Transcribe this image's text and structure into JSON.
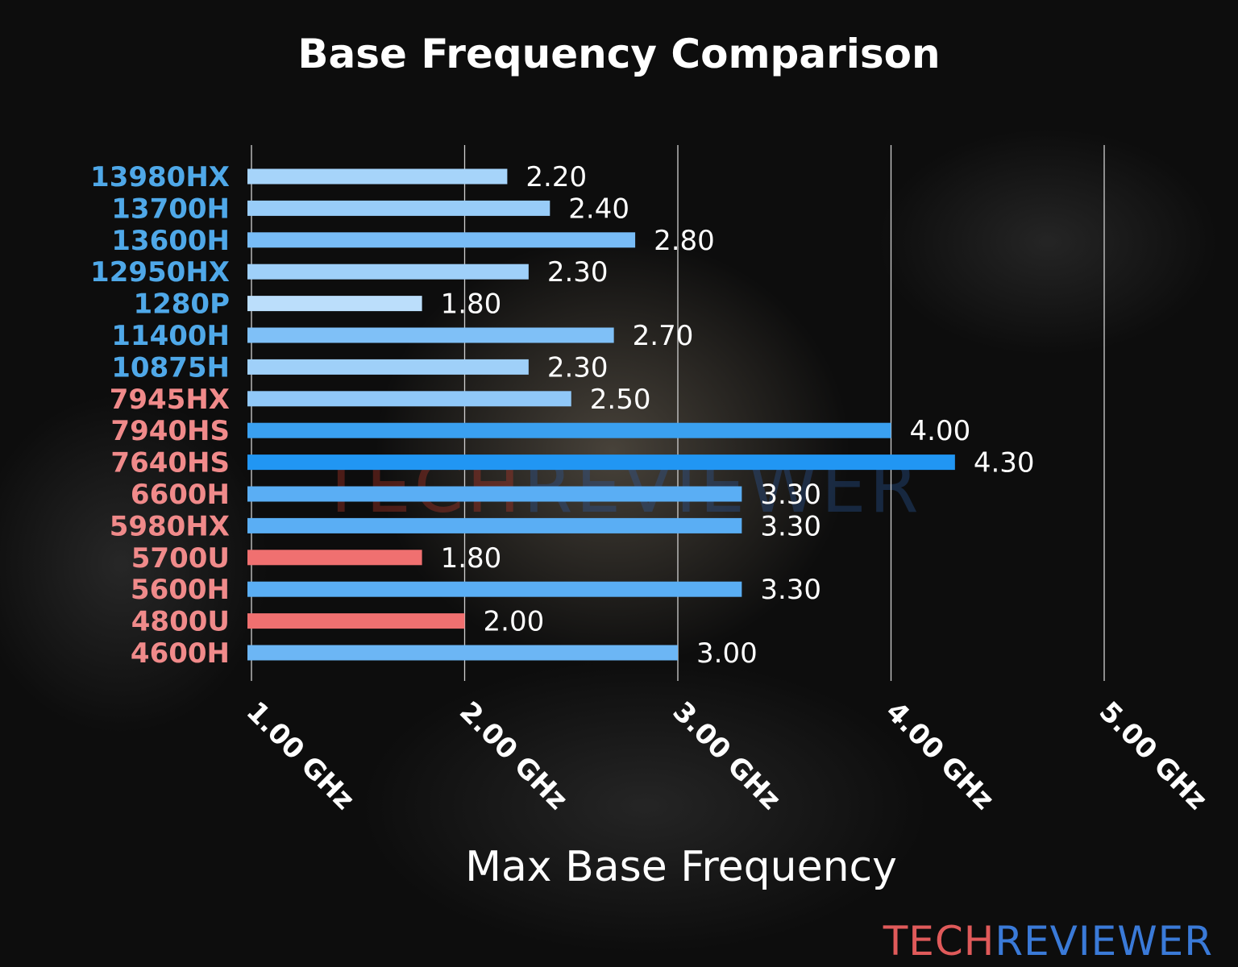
{
  "chart_data": {
    "type": "bar",
    "orientation": "horizontal",
    "title": "Base Frequency Comparison",
    "xlabel": "Max Base Frequency",
    "ylabel": "",
    "xlim": [
      1.0,
      5.0
    ],
    "xticks": [
      1,
      2,
      3,
      4,
      5
    ],
    "xtick_labels": [
      "1.00 GHz",
      "2.00 GHz",
      "3.00 GHz",
      "4.00 GHz",
      "5.00 GHz"
    ],
    "grid": "vertical",
    "categories": [
      "13980HX",
      "13700H",
      "13600H",
      "12950HX",
      "1280P",
      "11400H",
      "10875H",
      "7945HX",
      "7940HS",
      "7640HS",
      "6600H",
      "5980HX",
      "5700U",
      "5600H",
      "4800U",
      "4600H"
    ],
    "values": [
      2.2,
      2.4,
      2.8,
      2.3,
      1.8,
      2.7,
      2.3,
      2.5,
      4.0,
      4.3,
      3.3,
      3.3,
      1.8,
      3.3,
      2.0,
      3.0
    ],
    "value_labels": [
      "2.20",
      "2.40",
      "2.80",
      "2.30",
      "1.80",
      "2.70",
      "2.30",
      "2.50",
      "4.00",
      "4.30",
      "3.30",
      "3.30",
      "1.80",
      "3.30",
      "2.00",
      "3.00"
    ],
    "bar_colors": [
      "#a6d4fa",
      "#98ccf8",
      "#78bcf6",
      "#9fd0f9",
      "#bbdefb",
      "#7fc0f7",
      "#9fd0f9",
      "#90c8f8",
      "#3aa0f0",
      "#2196f3",
      "#5aaef4",
      "#5aaef4",
      "#f07070",
      "#5aaef4",
      "#f07070",
      "#6cb6f5"
    ],
    "label_colors": [
      "#4fa8e8",
      "#4fa8e8",
      "#4fa8e8",
      "#4fa8e8",
      "#4fa8e8",
      "#4fa8e8",
      "#4fa8e8",
      "#f08a8a",
      "#f08a8a",
      "#f08a8a",
      "#f08a8a",
      "#f08a8a",
      "#f08a8a",
      "#f08a8a",
      "#f08a8a",
      "#f08a8a"
    ]
  },
  "watermark": {
    "part1": "TECH",
    "part2": "REVIEWER",
    "color1": "#e05a5a",
    "color2": "#3a7ad8"
  }
}
